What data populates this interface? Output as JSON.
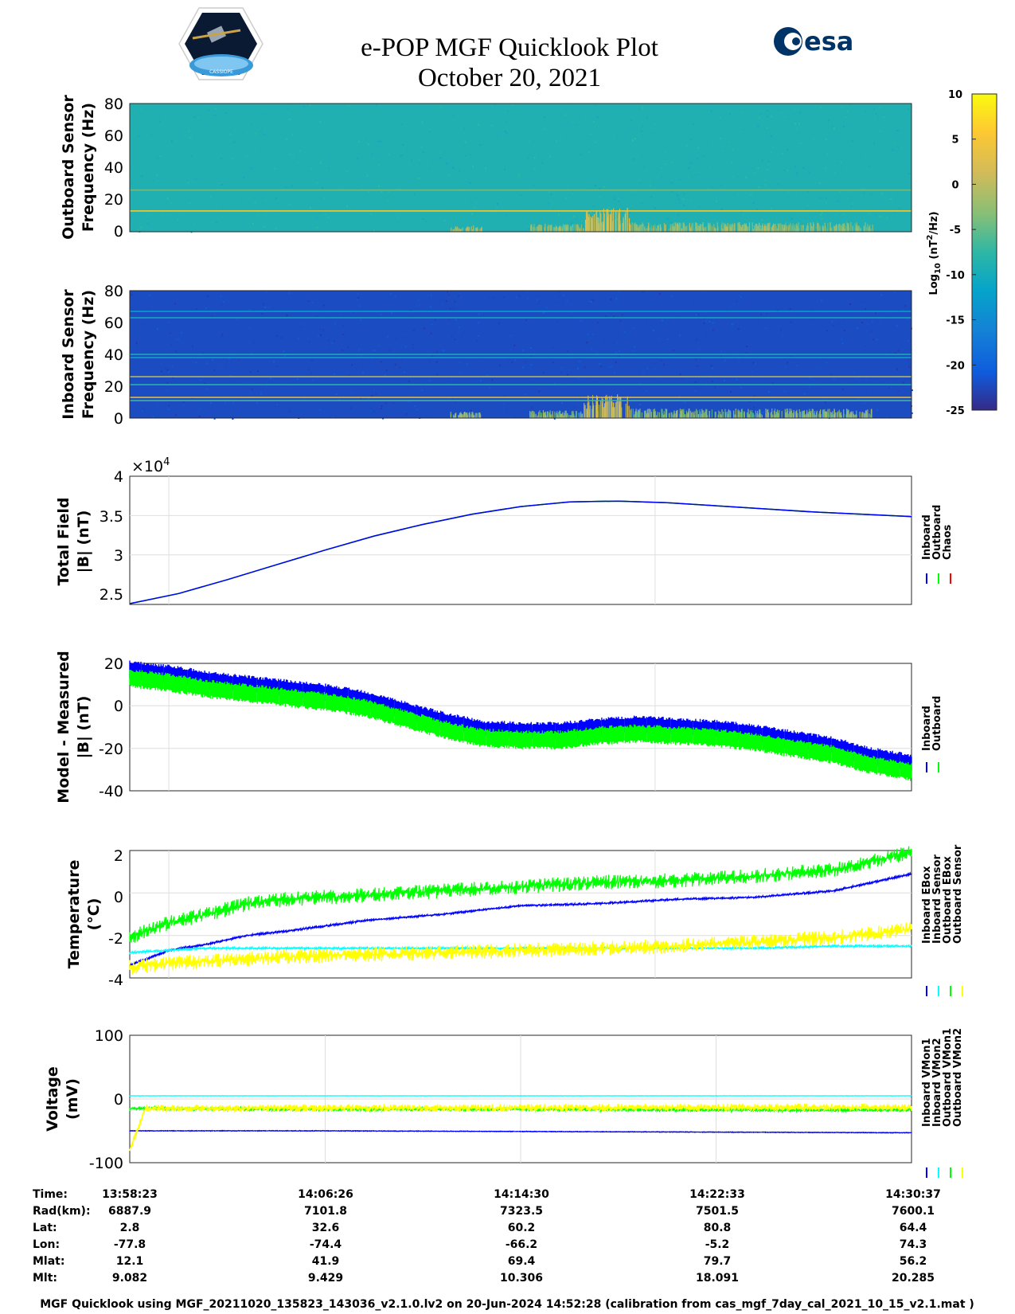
{
  "header": {
    "title_line1": "e-POP MGF Quicklook Plot",
    "title_line2": "October 20, 2021",
    "logo_left_text": "CASSIOPE",
    "logo_right_text": "esa"
  },
  "colorbar": {
    "label_main": "Log",
    "label_sub": "10",
    "label_unit_a": " (nT",
    "label_sup": "2",
    "label_unit_b": "/Hz)",
    "ticks": [
      "10",
      "5",
      "0",
      "-5",
      "-10",
      "-15",
      "-20",
      "-25"
    ],
    "range": [
      -25,
      10
    ]
  },
  "panels": {
    "outboard_spec": {
      "ylabel_line1": "Outboard Sensor",
      "ylabel_line2": "Frequency (Hz)",
      "yticks": [
        "80",
        "60",
        "40",
        "20",
        "0"
      ]
    },
    "inboard_spec": {
      "ylabel_line1": "Inboard Sensor",
      "ylabel_line2": "Frequency (Hz)",
      "yticks": [
        "80",
        "60",
        "40",
        "20",
        "0"
      ]
    },
    "total_field": {
      "ylabel_line1": "Total Field",
      "ylabel_line2": "|B| (nT)",
      "yticks": [
        "4",
        "3.5",
        "3",
        "2.5"
      ],
      "exponent_base": "×10",
      "exponent_power": "4",
      "legend": [
        "Inboard",
        "Outboard",
        "Chaos"
      ]
    },
    "model_measured": {
      "ylabel_line1": "Model - Measured",
      "ylabel_line2": "|B| (nT)",
      "yticks": [
        "20",
        "0",
        "-20",
        "-40"
      ],
      "legend": [
        "Inboard",
        "Outboard"
      ]
    },
    "temperature": {
      "ylabel_line1": "Temperature",
      "ylabel_line2": "(°C)",
      "yticks": [
        "2",
        "0",
        "-2",
        "-4"
      ],
      "legend": [
        "Inboard EBox",
        "Inboard Sensor",
        "Outboard EBox",
        "Outboard Sensor"
      ]
    },
    "voltage": {
      "ylabel_line1": "Voltage",
      "ylabel_line2": "(mV)",
      "yticks": [
        "100",
        "0",
        "-100"
      ],
      "legend": [
        "Inboard VMon1",
        "Inboard VMon2",
        "Outboard VMon1",
        "Outboard VMon2"
      ]
    }
  },
  "table": {
    "row_labels": [
      "Time:",
      "Rad(km):",
      "Lat:",
      "Lon:",
      "Mlat:",
      "Mlt:"
    ],
    "columns": [
      [
        "13:58:23",
        "6887.9",
        "2.8",
        "-77.8",
        "12.1",
        "9.082"
      ],
      [
        "14:06:26",
        "7101.8",
        "32.6",
        "-74.4",
        "41.9",
        "9.429"
      ],
      [
        "14:14:30",
        "7323.5",
        "60.2",
        "-66.2",
        "69.4",
        "10.306"
      ],
      [
        "14:22:33",
        "7501.5",
        "80.8",
        "-5.2",
        "79.7",
        "18.091"
      ],
      [
        "14:30:37",
        "7600.1",
        "64.4",
        "74.3",
        "56.2",
        "20.285"
      ]
    ]
  },
  "footer": "MGF Quicklook using MGF_20211020_135823_143036_v2.1.0.lv2 on 20-Jun-2024 14:52:28 (calibration from cas_mgf_7day_cal_2021_10_15_v2.1.mat )",
  "chart_data": [
    {
      "type": "heatmap",
      "name": "Outboard Sensor spectrogram",
      "ylabel": "Frequency (Hz)",
      "ylim": [
        0,
        80
      ],
      "colorscale": "parula",
      "crange": [
        -25,
        10
      ],
      "background_log10": -9,
      "lines_hz": [
        {
          "f": 13,
          "level": 6
        },
        {
          "f": 26,
          "level": -4
        }
      ],
      "activity": [
        {
          "t0": 0.41,
          "t1": 0.45,
          "fmax": 4,
          "level": 2
        },
        {
          "t0": 0.51,
          "t1": 0.58,
          "fmax": 5,
          "level": 1
        },
        {
          "t0": 0.58,
          "t1": 0.64,
          "fmax": 15,
          "level": 5
        },
        {
          "t0": 0.64,
          "t1": 0.95,
          "fmax": 6,
          "level": 1
        }
      ]
    },
    {
      "type": "heatmap",
      "name": "Inboard Sensor spectrogram",
      "ylabel": "Frequency (Hz)",
      "ylim": [
        0,
        80
      ],
      "colorscale": "parula",
      "crange": [
        -25,
        10
      ],
      "background_log10": -22,
      "lines_hz": [
        {
          "f": 67,
          "level": -12
        },
        {
          "f": 63,
          "level": -10
        },
        {
          "f": 40,
          "level": -9
        },
        {
          "f": 38,
          "level": -11
        },
        {
          "f": 26,
          "level": 0
        },
        {
          "f": 21,
          "level": -8
        },
        {
          "f": 13,
          "level": 4
        },
        {
          "f": 11,
          "level": -6
        }
      ],
      "activity": [
        {
          "t0": 0.41,
          "t1": 0.45,
          "fmax": 4,
          "level": 1
        },
        {
          "t0": 0.51,
          "t1": 0.58,
          "fmax": 5,
          "level": 0
        },
        {
          "t0": 0.58,
          "t1": 0.64,
          "fmax": 15,
          "level": 4
        },
        {
          "t0": 0.64,
          "t1": 0.95,
          "fmax": 6,
          "level": 0
        }
      ]
    },
    {
      "type": "line",
      "name": "Total Field",
      "ylabel": "Total Field |B| (nT)",
      "ylim": [
        23500,
        40000
      ],
      "y_scale": 10000,
      "x": [
        "13:58:23",
        "14:00:00",
        "14:02:00",
        "14:04:00",
        "14:06:00",
        "14:08:00",
        "14:10:00",
        "14:12:00",
        "14:14:00",
        "14:16:00",
        "14:18:00",
        "14:20:00",
        "14:22:00",
        "14:24:00",
        "14:26:00",
        "14:28:00",
        "14:30:37"
      ],
      "series": [
        {
          "name": "Inboard",
          "color": "#0000ff",
          "values": [
            23600,
            24900,
            26700,
            28600,
            30500,
            32300,
            33800,
            35100,
            36100,
            36700,
            36800,
            36600,
            36200,
            35800,
            35400,
            35100,
            34800
          ]
        },
        {
          "name": "Outboard",
          "color": "#00ff00",
          "values": [
            23600,
            24900,
            26700,
            28600,
            30500,
            32300,
            33800,
            35100,
            36100,
            36700,
            36800,
            36600,
            36200,
            35800,
            35400,
            35100,
            34800
          ]
        },
        {
          "name": "Chaos",
          "color": "#ff0000",
          "values": [
            23600,
            24900,
            26700,
            28600,
            30500,
            32300,
            33800,
            35100,
            36100,
            36700,
            36800,
            36600,
            36200,
            35800,
            35400,
            35100,
            34800
          ]
        }
      ]
    },
    {
      "type": "line",
      "name": "Model - Measured",
      "ylabel": "Model - Measured |B| (nT)",
      "ylim": [
        -40,
        20
      ],
      "x_frac": [
        0,
        0.05,
        0.1,
        0.15,
        0.2,
        0.25,
        0.3,
        0.35,
        0.4,
        0.45,
        0.5,
        0.55,
        0.6,
        0.65,
        0.7,
        0.75,
        0.8,
        0.85,
        0.9,
        0.95,
        1
      ],
      "series": [
        {
          "name": "Inboard",
          "color": "#0000ff",
          "values": [
            17,
            15,
            12,
            10,
            8,
            6,
            3,
            -2,
            -7,
            -11,
            -12,
            -12,
            -10,
            -9,
            -10,
            -11,
            -13,
            -16,
            -19,
            -24,
            -27
          ]
        },
        {
          "name": "Outboard",
          "color": "#00ff00",
          "values": [
            13,
            11,
            8,
            6,
            4,
            2,
            -1,
            -6,
            -11,
            -15,
            -16,
            -16,
            -14,
            -13,
            -14,
            -15,
            -17,
            -20,
            -23,
            -28,
            -31
          ]
        }
      ]
    },
    {
      "type": "line",
      "name": "Temperature",
      "ylabel": "Temperature (°C)",
      "ylim": [
        -4,
        2
      ],
      "x_frac": [
        0,
        0.05,
        0.1,
        0.15,
        0.2,
        0.3,
        0.4,
        0.5,
        0.6,
        0.7,
        0.8,
        0.9,
        0.95,
        1
      ],
      "series": [
        {
          "name": "Inboard EBox",
          "color": "#0000ff",
          "values": [
            -3.4,
            -2.7,
            -2.4,
            -2.0,
            -1.8,
            -1.3,
            -1.0,
            -0.6,
            -0.5,
            -0.3,
            -0.2,
            0.1,
            0.5,
            0.9
          ]
        },
        {
          "name": "Inboard Sensor",
          "color": "#00ffff",
          "values": [
            -2.8,
            -2.7,
            -2.6,
            -2.6,
            -2.6,
            -2.6,
            -2.6,
            -2.6,
            -2.6,
            -2.6,
            -2.6,
            -2.5,
            -2.5,
            -2.5
          ]
        },
        {
          "name": "Outboard EBox",
          "color": "#00ff00",
          "values": [
            -2.1,
            -1.4,
            -1.0,
            -0.5,
            -0.3,
            -0.1,
            0.1,
            0.3,
            0.5,
            0.6,
            0.8,
            1.1,
            1.5,
            1.9
          ]
        },
        {
          "name": "Outboard Sensor",
          "color": "#ffff00",
          "values": [
            -3.5,
            -3.3,
            -3.2,
            -3.1,
            -3.0,
            -2.9,
            -2.8,
            -2.7,
            -2.6,
            -2.5,
            -2.3,
            -2.1,
            -1.9,
            -1.7
          ]
        }
      ]
    },
    {
      "type": "line",
      "name": "Voltage",
      "ylabel": "Voltage (mV)",
      "ylim": [
        -100,
        100
      ],
      "x_frac": [
        0,
        0.02,
        0.25,
        0.5,
        0.75,
        1
      ],
      "series": [
        {
          "name": "Inboard VMon1",
          "color": "#0000ff",
          "values": [
            -50,
            -50,
            -50,
            -51,
            -52,
            -53
          ]
        },
        {
          "name": "Inboard VMon2",
          "color": "#00ffff",
          "values": [
            5,
            5,
            5,
            5,
            5,
            5
          ]
        },
        {
          "name": "Outboard VMon1",
          "color": "#00ff00",
          "values": [
            -15,
            -15,
            -16,
            -16,
            -17,
            -17
          ]
        },
        {
          "name": "Outboard VMon2",
          "color": "#ffff00",
          "values": [
            -80,
            -15,
            -14,
            -14,
            -13,
            -13
          ]
        }
      ]
    }
  ]
}
